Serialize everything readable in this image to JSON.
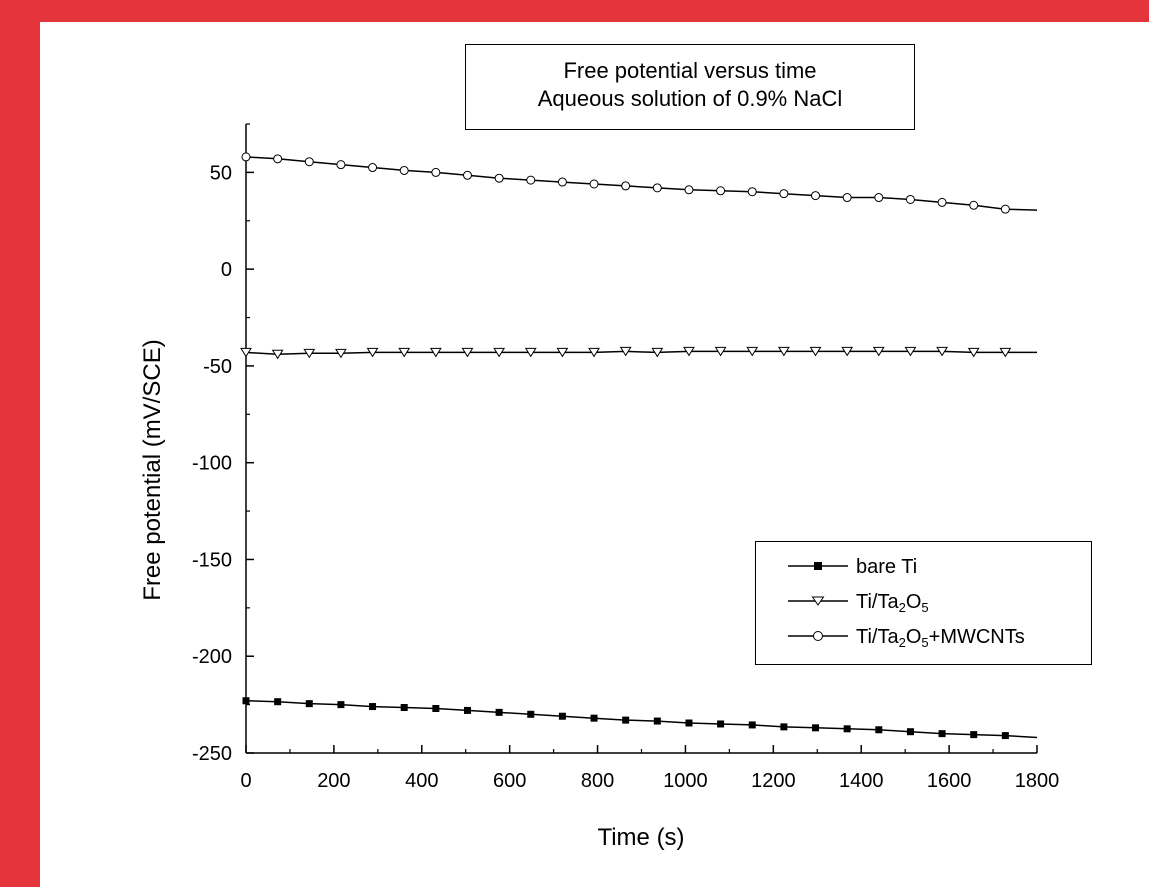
{
  "chart_data": {
    "type": "line",
    "title": "Free potential versus time",
    "subtitle": "Aqueous solution of 0.9% NaCl",
    "xlabel": "Time (s)",
    "ylabel": "Free potential (mV/SCE)",
    "xlim": [
      0,
      1800
    ],
    "ylim": [
      -250,
      75
    ],
    "xticks": [
      0,
      200,
      400,
      600,
      800,
      1000,
      1200,
      1400,
      1600,
      1800
    ],
    "yticks": [
      50,
      0,
      -50,
      -100,
      -150,
      -200,
      -250
    ],
    "grid": false,
    "legend_position": "bottom-right",
    "series": [
      {
        "name": "bare Ti",
        "name_parts": [
          "bare Ti"
        ],
        "marker": "filled-square",
        "color": "#000000",
        "x": [
          0,
          72,
          144,
          216,
          288,
          360,
          432,
          504,
          576,
          648,
          720,
          792,
          864,
          936,
          1008,
          1080,
          1152,
          1224,
          1296,
          1368,
          1440,
          1512,
          1584,
          1656,
          1728,
          1800
        ],
        "y": [
          -223,
          -223.5,
          -224.5,
          -225,
          -226,
          -226.5,
          -227,
          -228,
          -229,
          -230,
          -231,
          -232,
          -233,
          -233.5,
          -234.5,
          -235,
          -235.5,
          -236.5,
          -237,
          -237.5,
          -238,
          -239,
          -240,
          -240.5,
          -241,
          -242
        ]
      },
      {
        "name": "Ti/Ta2O5",
        "name_parts": [
          "Ti/Ta",
          "2",
          "O",
          "5"
        ],
        "marker": "open-triangle-down",
        "color": "#000000",
        "x": [
          0,
          72,
          144,
          216,
          288,
          360,
          432,
          504,
          576,
          648,
          720,
          792,
          864,
          936,
          1008,
          1080,
          1152,
          1224,
          1296,
          1368,
          1440,
          1512,
          1584,
          1656,
          1728,
          1800
        ],
        "y": [
          -43,
          -44,
          -43.5,
          -43.5,
          -43,
          -43,
          -43,
          -43,
          -43,
          -43,
          -43,
          -43,
          -42.5,
          -43,
          -42.5,
          -42.5,
          -42.5,
          -42.5,
          -42.5,
          -42.5,
          -42.5,
          -42.5,
          -42.5,
          -43,
          -43,
          -43
        ]
      },
      {
        "name": "Ti/Ta2O5+MWCNTs",
        "name_parts": [
          "Ti/Ta",
          "2",
          "O",
          "5",
          "+MWCNTs"
        ],
        "marker": "open-circle",
        "color": "#000000",
        "x": [
          0,
          72,
          144,
          216,
          288,
          360,
          432,
          504,
          576,
          648,
          720,
          792,
          864,
          936,
          1008,
          1080,
          1152,
          1224,
          1296,
          1368,
          1440,
          1512,
          1584,
          1656,
          1728,
          1800
        ],
        "y": [
          58,
          57,
          55.5,
          54,
          52.5,
          51,
          50,
          48.5,
          47,
          46,
          45,
          44,
          43,
          42,
          41,
          40.5,
          40,
          39,
          38,
          37,
          37,
          36,
          34.5,
          33,
          31,
          30.5
        ]
      }
    ]
  }
}
